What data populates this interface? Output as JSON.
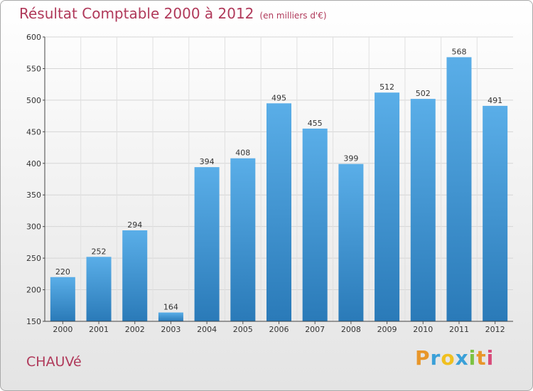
{
  "chart_data": {
    "type": "bar",
    "title": "Résultat Comptable 2000 à 2012",
    "subtitle": "(en milliers d'€)",
    "categories": [
      "2000",
      "2001",
      "2002",
      "2003",
      "2004",
      "2005",
      "2006",
      "2007",
      "2008",
      "2009",
      "2010",
      "2011",
      "2012"
    ],
    "values": [
      220,
      252,
      294,
      164,
      394,
      408,
      495,
      455,
      399,
      512,
      502,
      568,
      491
    ],
    "ylim": [
      150,
      600
    ],
    "yticks": [
      150,
      200,
      250,
      300,
      350,
      400,
      450,
      500,
      550,
      600
    ],
    "xlabel": "",
    "ylabel": "",
    "grid": true,
    "bar_color_top": "#5aaee8",
    "bar_color_bottom": "#2a7ab8"
  },
  "commune": "CHAUVé",
  "logo": {
    "text": "Proxiti"
  }
}
